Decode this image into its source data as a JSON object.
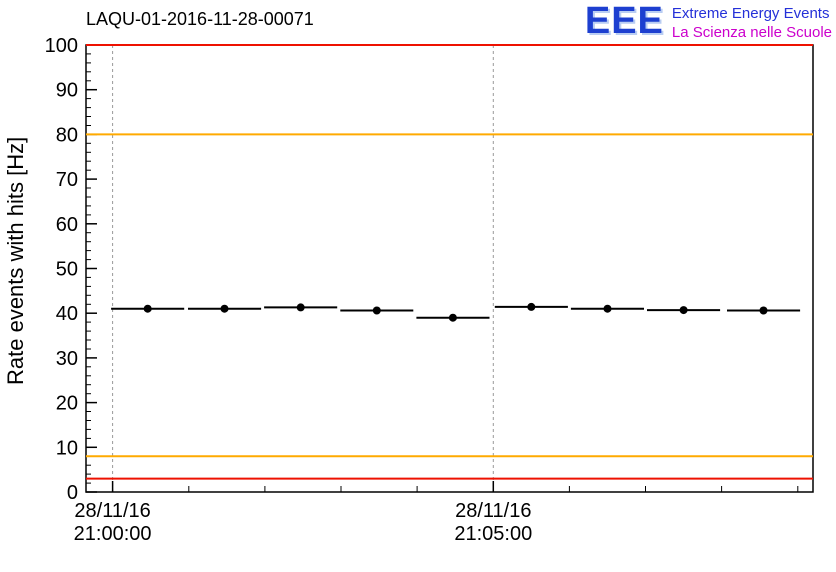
{
  "header": {
    "title": "LAQU-01-2016-11-28-00071",
    "logo": {
      "acronym": "EEE",
      "line1": "Extreme Energy Events",
      "line2": "La Scienza nelle Scuole"
    }
  },
  "colors": {
    "logo_blue": "#1d3fd0",
    "logo_magenta": "#cc00cc",
    "alarm_red": "#ee1100",
    "warning_orange": "#ffaa00",
    "grid_gray": "#999999",
    "marker_black": "#000000"
  },
  "chart_data": {
    "type": "scatter",
    "title": "LAQU-01-2016-11-28-00071",
    "ylabel": "Rate events with hits [Hz]",
    "xlabel": "",
    "ylim": [
      0,
      100
    ],
    "xlim_minutes_from_2100": [
      -0.35,
      9.2
    ],
    "y_ticks": [
      0,
      10,
      20,
      30,
      40,
      50,
      60,
      70,
      80,
      90,
      100
    ],
    "y_minor_step": 2,
    "x_ticks": [
      {
        "minute": 0,
        "date": "28/11/16",
        "time": "21:00:00"
      },
      {
        "minute": 5,
        "date": "28/11/16",
        "time": "21:05:00"
      }
    ],
    "x_minor_step_minutes": 1,
    "grid": {
      "vertical_dashed": true,
      "horizontal": false
    },
    "legend": "none",
    "series": [
      {
        "name": "event-rate-with-hits",
        "marker": "filled-circle",
        "color": "#000000",
        "x_minutes": [
          0.46,
          1.47,
          2.47,
          3.47,
          4.47,
          5.5,
          6.5,
          7.5,
          8.55
        ],
        "y": [
          41.0,
          41.0,
          41.3,
          40.6,
          39.0,
          41.4,
          41.0,
          40.7,
          40.6
        ],
        "x_err_minutes": 0.48
      }
    ],
    "reference_lines": [
      {
        "y": 100,
        "color": "#ee1100",
        "name": "upper-alarm-line"
      },
      {
        "y": 80,
        "color": "#ffaa00",
        "name": "upper-warning-line"
      },
      {
        "y": 8,
        "color": "#ffaa00",
        "name": "lower-warning-line"
      },
      {
        "y": 3,
        "color": "#ee1100",
        "name": "lower-alarm-line"
      }
    ]
  }
}
